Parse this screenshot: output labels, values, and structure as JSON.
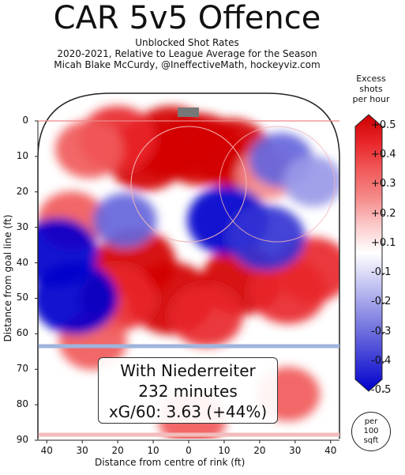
{
  "chart_data": {
    "type": "heatmap",
    "title": "CAR 5v5 Offence",
    "subtitles": [
      "Unblocked Shot Rates",
      "2020-2021, Relative to League Average for the Season",
      "Micah Blake McCurdy, @IneffectiveMath, hockeyviz.com"
    ],
    "xlabel": "Distance from centre of rink (ft)",
    "ylabel": "Distance from goal line (ft)",
    "xlim": [
      -42.5,
      42.5
    ],
    "ylim": [
      0,
      90
    ],
    "x_ticks": [
      40,
      30,
      20,
      10,
      0,
      10,
      20,
      30,
      40
    ],
    "x_tick_values": [
      -40,
      -30,
      -20,
      -10,
      0,
      10,
      20,
      30,
      40
    ],
    "y_ticks": [
      0,
      10,
      20,
      30,
      40,
      50,
      60,
      70,
      80,
      90
    ],
    "colorbar": {
      "title": [
        "Excess",
        "shots",
        "per hour"
      ],
      "ticks": [
        "+0.5",
        "+0.4",
        "+0.3",
        "+0.2",
        "+0.1",
        "-0.1",
        "-0.2",
        "-0.3",
        "-0.4",
        "-0.5"
      ],
      "range": [
        -0.5,
        0.5
      ]
    },
    "unit_note": [
      "per",
      "100",
      "sqft"
    ],
    "hot_spots": [
      {
        "x": -5,
        "y": 6,
        "value": 0.5
      },
      {
        "x": 3,
        "y": 8,
        "value": 0.5
      },
      {
        "x": -12,
        "y": 10,
        "value": 0.45
      },
      {
        "x": 12,
        "y": 9,
        "value": 0.45
      },
      {
        "x": -20,
        "y": 5,
        "value": 0.4
      },
      {
        "x": -28,
        "y": 8,
        "value": 0.3
      },
      {
        "x": -33,
        "y": 28,
        "value": 0.3
      },
      {
        "x": -15,
        "y": 40,
        "value": 0.45
      },
      {
        "x": -5,
        "y": 50,
        "value": 0.5
      },
      {
        "x": -20,
        "y": 50,
        "value": 0.4
      },
      {
        "x": 15,
        "y": 45,
        "value": 0.45
      },
      {
        "x": 28,
        "y": 48,
        "value": 0.4
      },
      {
        "x": 35,
        "y": 42,
        "value": 0.4
      },
      {
        "x": 5,
        "y": 55,
        "value": 0.35
      },
      {
        "x": -27,
        "y": 62,
        "value": 0.3
      },
      {
        "x": 1,
        "y": 84,
        "value": 0.3
      },
      {
        "x": 28,
        "y": 77,
        "value": 0.25
      },
      {
        "x": 22,
        "y": 15,
        "value": 0.2
      },
      {
        "x": -37,
        "y": 37,
        "value": -0.45
      },
      {
        "x": -32,
        "y": 50,
        "value": -0.5
      },
      {
        "x": 11,
        "y": 28,
        "value": -0.45
      },
      {
        "x": 22,
        "y": 33,
        "value": -0.4
      },
      {
        "x": -18,
        "y": 28,
        "value": -0.25
      },
      {
        "x": 26,
        "y": 11,
        "value": -0.25
      },
      {
        "x": 35,
        "y": 17,
        "value": -0.2
      }
    ],
    "annotation": {
      "lines": [
        "With Niederreiter",
        "232 minutes",
        "xG/60: 3.63 (+44%)"
      ]
    }
  }
}
